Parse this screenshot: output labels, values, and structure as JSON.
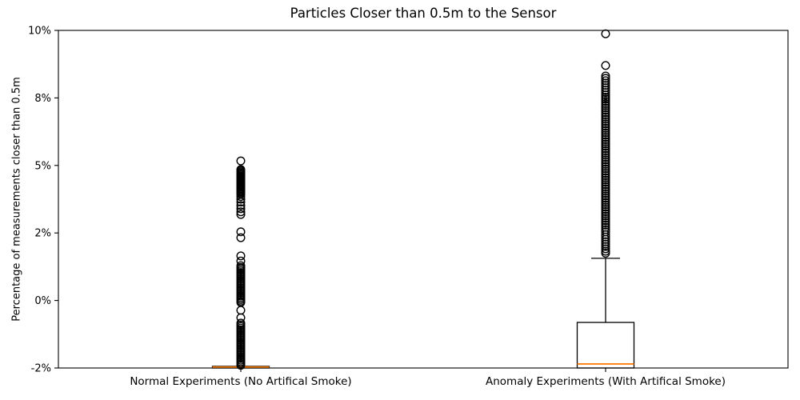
{
  "chart_data": {
    "type": "boxplot",
    "title": "Particles Closer than 0.5m to the Sensor",
    "ylabel": "Percentage of measurements closer than 0.5m",
    "x_categories": [
      "Normal Experiments (No Artifical Smoke)",
      "Anomaly Experiments (With Artifical Smoke)"
    ],
    "y_ticks": [
      {
        "label": "10%",
        "value": 10
      },
      {
        "label": "8%",
        "value": 8
      },
      {
        "label": "5%",
        "value": 5
      },
      {
        "label": "2%",
        "value": 2
      },
      {
        "label": "0%",
        "value": 0
      },
      {
        "label": "-2%",
        "value": -2
      }
    ],
    "legend": "none",
    "grid": false,
    "colors": {
      "box_line": "#000000",
      "median_line": "#ff7f0e",
      "flier_edge": "#000000",
      "background": "#ffffff"
    },
    "boxes": [
      {
        "category": "Normal Experiments (No Artifical Smoke)",
        "q1": -2.0,
        "median": -1.97,
        "q3": -1.95,
        "whisker_low": -2.0,
        "whisker_high": -1.95,
        "outliers": [
          5.2,
          4.82,
          4.77,
          4.72,
          4.67,
          4.62,
          4.57,
          4.52,
          4.47,
          4.42,
          4.37,
          4.32,
          4.27,
          4.22,
          4.17,
          4.12,
          4.07,
          4.02,
          3.97,
          3.92,
          3.87,
          3.82,
          3.77,
          3.72,
          3.62,
          3.5,
          3.37,
          3.22,
          3.08,
          2.94,
          2.82,
          2.05,
          1.86,
          1.32,
          1.17,
          1.03,
          0.98,
          0.93,
          0.88,
          0.83,
          0.78,
          0.73,
          0.68,
          0.63,
          0.58,
          0.53,
          0.48,
          0.43,
          0.38,
          0.33,
          0.28,
          0.23,
          0.18,
          0.13,
          0.08,
          0.03,
          -0.02,
          -0.06,
          -0.29,
          -0.51,
          -0.67,
          -0.72,
          -0.77,
          -0.82,
          -0.87,
          -0.92,
          -0.97,
          -1.02,
          -1.07,
          -1.12,
          -1.17,
          -1.22,
          -1.27,
          -1.32,
          -1.37,
          -1.42,
          -1.47,
          -1.52,
          -1.57,
          -1.62,
          -1.67,
          -1.72,
          -1.77,
          -1.82,
          -1.87,
          -1.92
        ]
      },
      {
        "category": "Anomaly Experiments (With Artifical Smoke)",
        "q1": -2.0,
        "median": -1.88,
        "q3": -0.65,
        "whisker_low": -2.0,
        "whisker_high": 1.25,
        "outliers": [
          9.9,
          8.96,
          8.65,
          8.58,
          8.51,
          8.44,
          8.37,
          8.3,
          8.23,
          8.16,
          8.09,
          8.02,
          7.95,
          7.85,
          7.75,
          7.65,
          7.55,
          7.45,
          7.35,
          7.25,
          7.15,
          7.05,
          6.95,
          6.85,
          6.75,
          6.65,
          6.55,
          6.45,
          6.35,
          6.25,
          6.15,
          6.05,
          5.95,
          5.85,
          5.75,
          5.65,
          5.55,
          5.45,
          5.35,
          5.25,
          5.15,
          5.05,
          4.95,
          4.85,
          4.75,
          4.65,
          4.55,
          4.45,
          4.35,
          4.25,
          4.15,
          4.05,
          3.95,
          3.85,
          3.75,
          3.65,
          3.55,
          3.45,
          3.35,
          3.25,
          3.15,
          3.05,
          2.95,
          2.85,
          2.75,
          2.65,
          2.55,
          2.45,
          2.35,
          2.25,
          2.15,
          2.05,
          1.95,
          1.88,
          1.81,
          1.74,
          1.67,
          1.6,
          1.53,
          1.46,
          1.4
        ]
      }
    ]
  }
}
